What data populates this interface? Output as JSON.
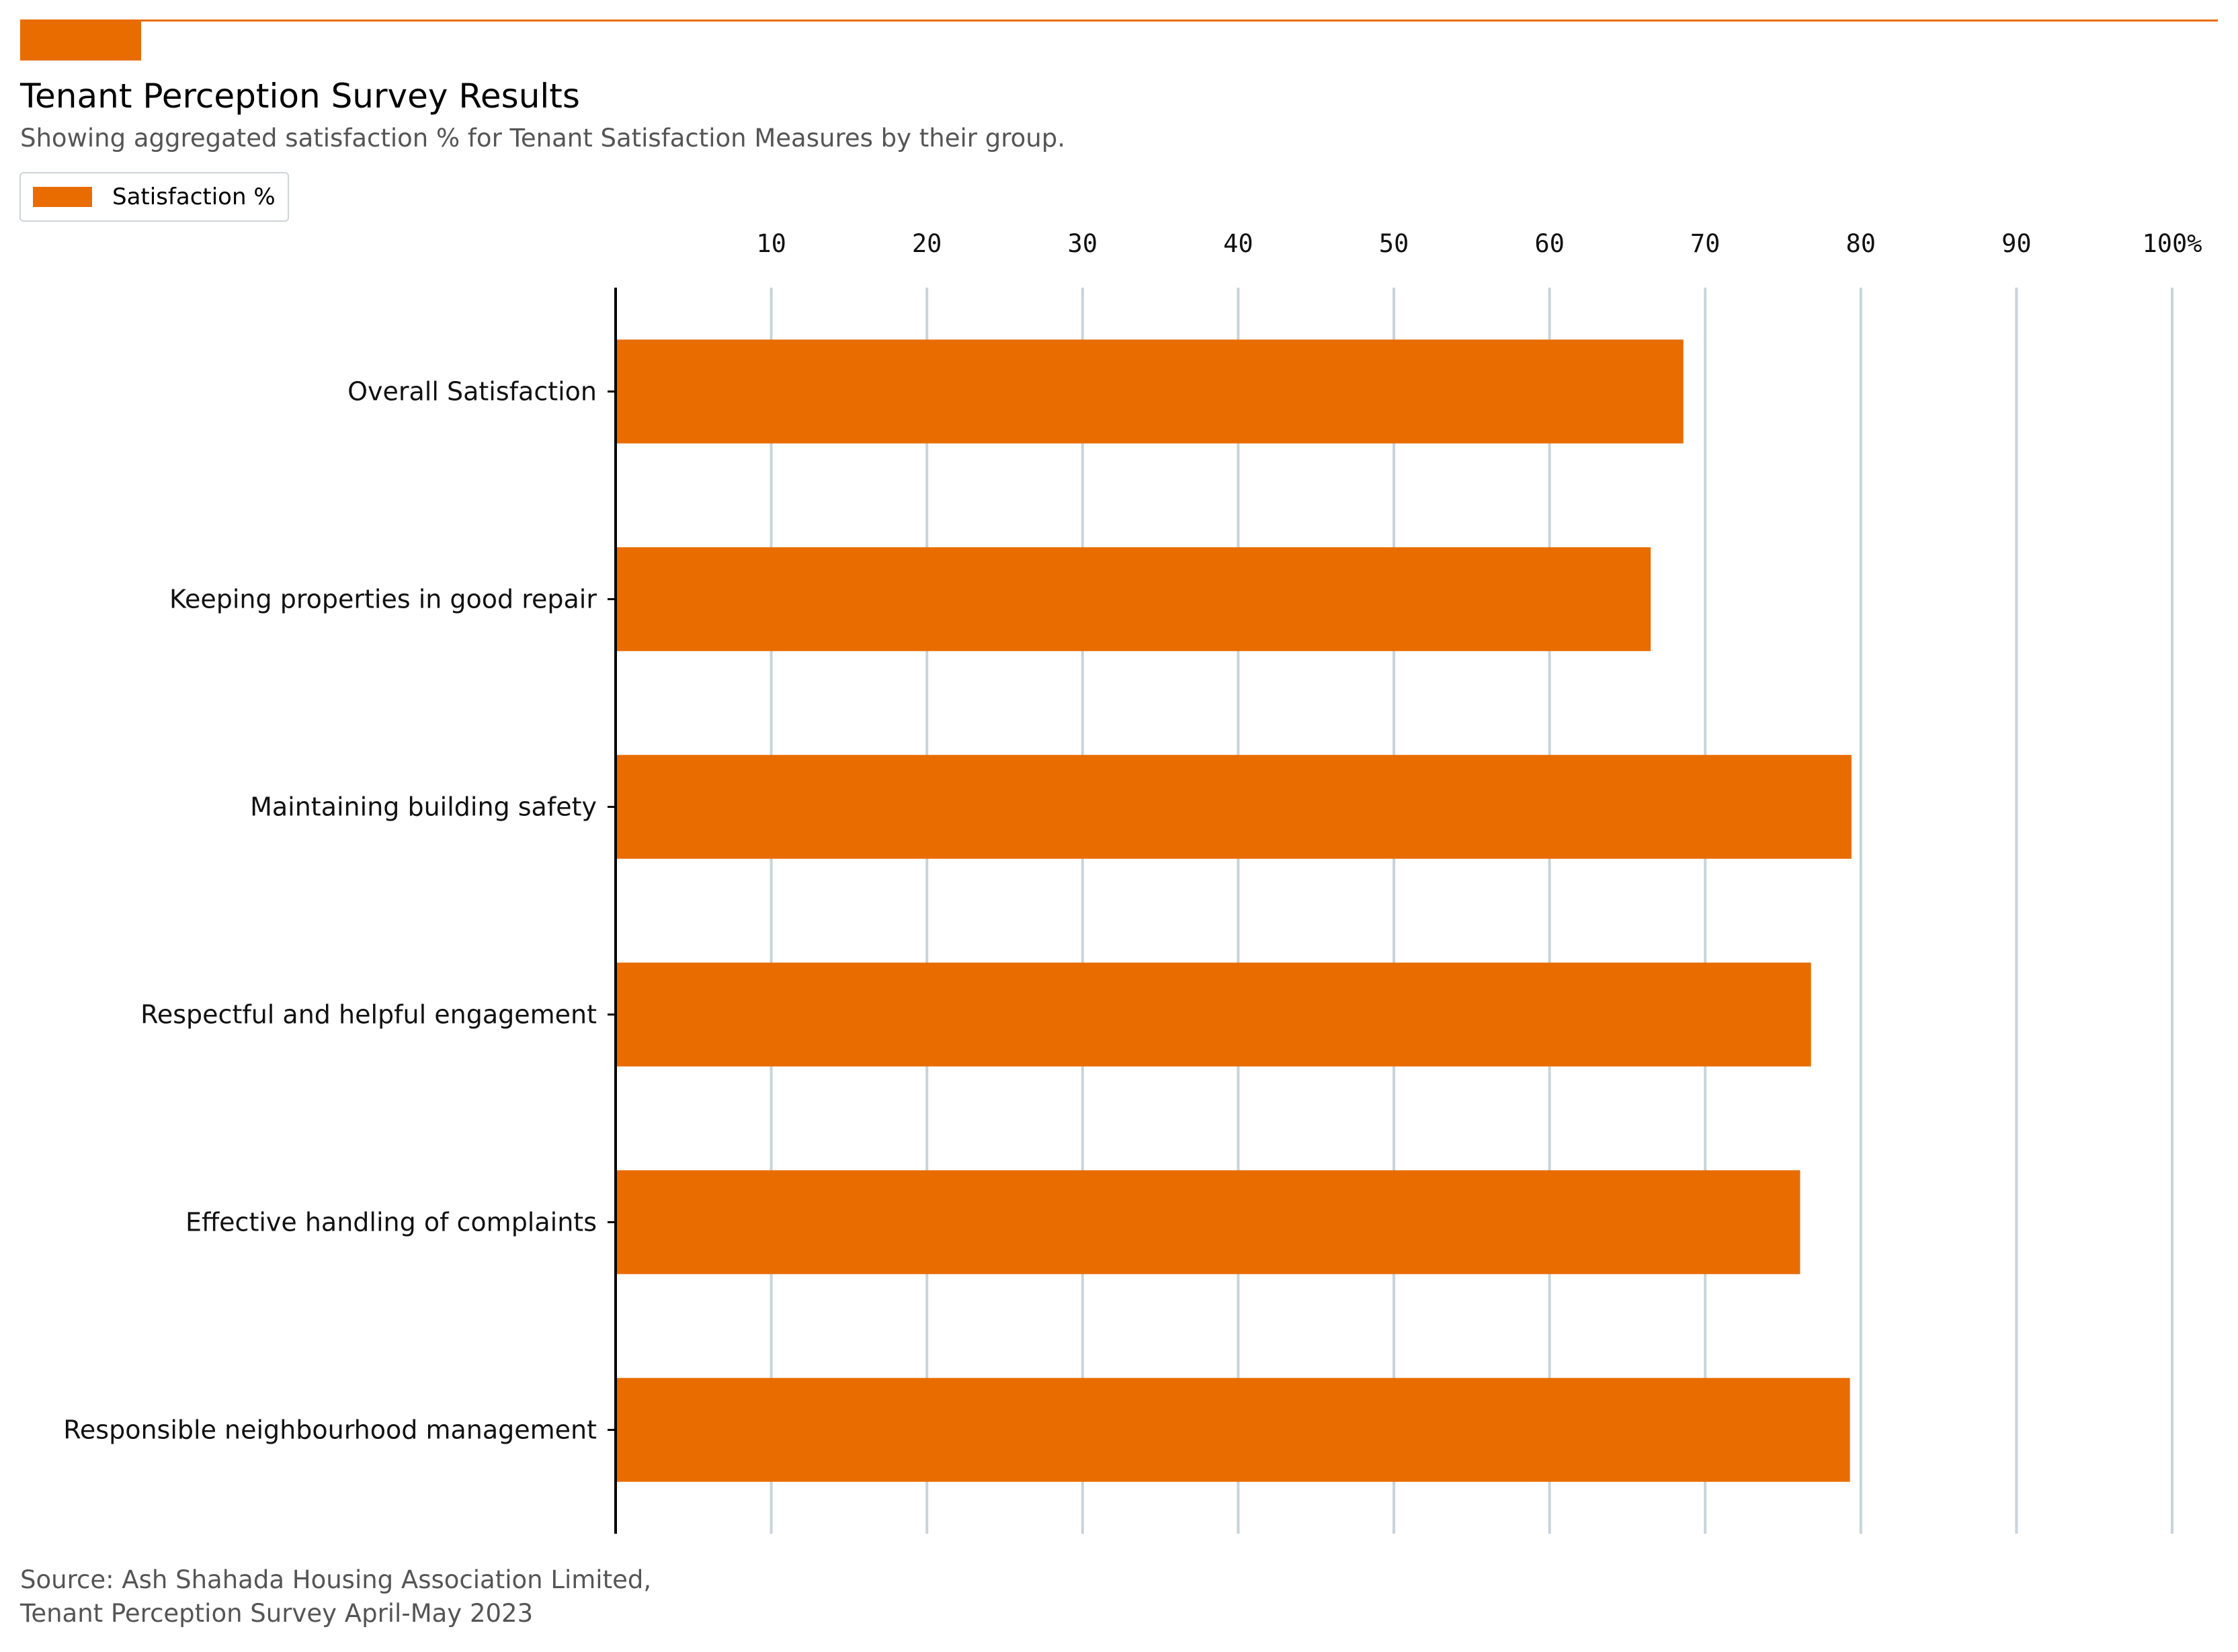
{
  "colors": {
    "accent": "#E86C00",
    "grid": "#C9D3DA",
    "axis": "#000000"
  },
  "header": {
    "title": "Tenant Perception Survey Results",
    "subtitle": "Showing aggregated satisfaction % for Tenant Satisfaction Measures by their group."
  },
  "legend": {
    "label": "Satisfaction %"
  },
  "footer": {
    "source_line1": "Source: Ash Shahada Housing Association Limited,",
    "source_line2": "Tenant Perception Survey April-May 2023"
  },
  "chart_data": {
    "type": "bar",
    "orientation": "horizontal",
    "categories": [
      "Overall Satisfaction",
      "Keeping properties in good repair",
      "Maintaining building safety",
      "Respectful and helpful engagement",
      "Effective handling of complaints",
      "Responsible neighbourhood management"
    ],
    "series": [
      {
        "name": "Satisfaction %",
        "values": [
          68.6,
          66.5,
          79.4,
          76.8,
          76.1,
          79.3
        ]
      }
    ],
    "xlim": [
      0,
      100
    ],
    "xticks": [
      10,
      20,
      30,
      40,
      50,
      60,
      70,
      80,
      90,
      100
    ],
    "xtick_labels": [
      "10",
      "20",
      "30",
      "40",
      "50",
      "60",
      "70",
      "80",
      "90",
      "100%"
    ],
    "x_axis_position": "top",
    "grid": "vertical",
    "legend_position": "top-left"
  }
}
